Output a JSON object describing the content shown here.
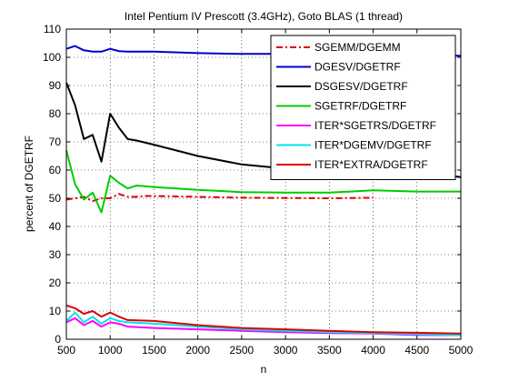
{
  "chart_data": {
    "type": "line",
    "title": "Intel Pentium IV Prescott (3.4GHz), Goto BLAS (1 thread)",
    "xlabel": "n",
    "ylabel": "percent of DGETRF",
    "xlim": [
      500,
      5000
    ],
    "ylim": [
      0,
      110
    ],
    "xticks": [
      500,
      1000,
      1500,
      2000,
      2500,
      3000,
      3500,
      4000,
      4500,
      5000
    ],
    "yticks": [
      0,
      10,
      20,
      30,
      40,
      50,
      60,
      70,
      80,
      90,
      100,
      110
    ],
    "grid": true,
    "legend_position": "top-right",
    "series": [
      {
        "name": "SGEMM/DGEMM",
        "color": "#dd0000",
        "dash": "dash-dot",
        "x": [
          500,
          600,
          700,
          800,
          900,
          1000,
          1100,
          1200,
          1300,
          1400,
          1500,
          2000,
          2500,
          3000,
          3500,
          4000
        ],
        "y": [
          49.5,
          50,
          50.5,
          49,
          50,
          50,
          51.5,
          50.5,
          50.5,
          50.8,
          50.8,
          50.5,
          50.2,
          50.1,
          50,
          50.2
        ]
      },
      {
        "name": "DGESV/DGETRF",
        "color": "#0000cc",
        "dash": "solid",
        "x": [
          500,
          600,
          700,
          800,
          900,
          1000,
          1100,
          1200,
          1500,
          2000,
          2500,
          3000,
          3500,
          4000,
          4500,
          5000
        ],
        "y": [
          103,
          104,
          102.5,
          102,
          102,
          103,
          102.2,
          102,
          102,
          101.5,
          101.2,
          101.2,
          101,
          101,
          101,
          100.5
        ]
      },
      {
        "name": "DSGESV/DGETRF",
        "color": "#000000",
        "dash": "solid",
        "x": [
          500,
          600,
          700,
          800,
          900,
          1000,
          1100,
          1200,
          1300,
          1500,
          2000,
          2500,
          3000,
          3500,
          4000,
          4500,
          5000
        ],
        "y": [
          91,
          83,
          71,
          72.5,
          63,
          80,
          75,
          71,
          70.5,
          69,
          65,
          62,
          60.5,
          59.5,
          61,
          59.5,
          57.5
        ]
      },
      {
        "name": "SGETRF/DGETRF",
        "color": "#00cc00",
        "dash": "solid",
        "x": [
          500,
          600,
          700,
          800,
          900,
          1000,
          1100,
          1200,
          1300,
          1500,
          2000,
          2500,
          3000,
          3500,
          4000,
          4500,
          5000
        ],
        "y": [
          67,
          55,
          49.5,
          52,
          45,
          58,
          55.5,
          53.5,
          54.5,
          54,
          53,
          52.2,
          52,
          52,
          52.8,
          52.4,
          52.4
        ]
      },
      {
        "name": "ITER*SGETRS/DGETRF",
        "color": "#ff00ff",
        "dash": "solid",
        "x": [
          500,
          600,
          700,
          800,
          900,
          1000,
          1100,
          1200,
          1500,
          2000,
          2500,
          3000,
          3500,
          4000,
          4500,
          5000
        ],
        "y": [
          6,
          7.5,
          5,
          6.5,
          4.5,
          6,
          5.5,
          4.5,
          4,
          3.5,
          3,
          2.5,
          2.2,
          2,
          1.5,
          1.5
        ]
      },
      {
        "name": "ITER*DGEMV/DGETRF",
        "color": "#00e5ee",
        "dash": "solid",
        "x": [
          500,
          600,
          700,
          800,
          900,
          1000,
          1100,
          1200,
          1500,
          2000,
          2500,
          3000,
          3500,
          4000,
          4500,
          5000
        ],
        "y": [
          6.5,
          9.5,
          6,
          8,
          5.5,
          7.5,
          6.5,
          6,
          5.5,
          4.5,
          3.5,
          3,
          2.5,
          2.2,
          1.8,
          1.5
        ]
      },
      {
        "name": "ITER*EXTRA/DGETRF",
        "color": "#dd0000",
        "dash": "solid",
        "x": [
          500,
          600,
          700,
          800,
          900,
          1000,
          1100,
          1200,
          1500,
          2000,
          2500,
          3000,
          3500,
          4000,
          4500,
          5000
        ],
        "y": [
          12,
          11,
          9,
          10,
          8,
          9.5,
          8,
          6.8,
          6.5,
          5,
          4,
          3.5,
          3,
          2.5,
          2.3,
          2
        ]
      }
    ]
  }
}
